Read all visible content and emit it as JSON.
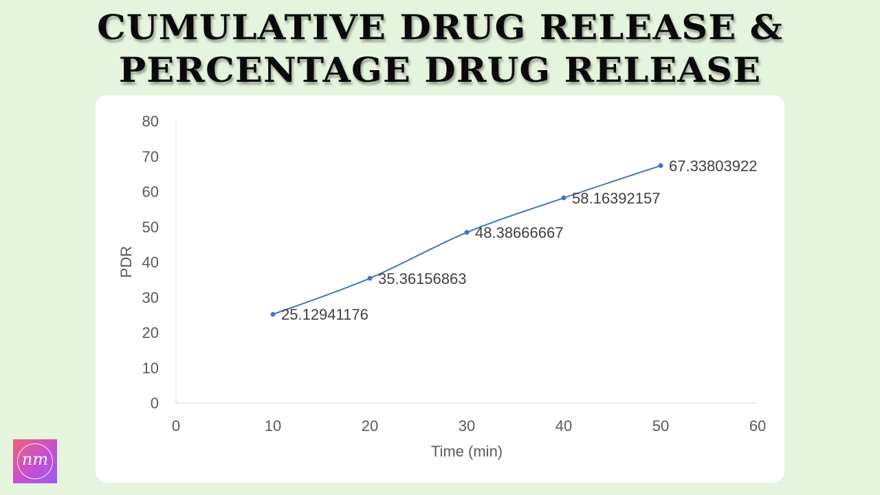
{
  "header": {
    "title_line_1": "CUMULATIVE DRUG RELEASE &",
    "title_line_2": "PERCENTAGE DRUG RELEASE"
  },
  "logo": {
    "text": "nm",
    "colors": [
      "#f0607a",
      "#c04fd8",
      "#9b5cf0"
    ]
  },
  "chart_data": {
    "type": "line",
    "title": "",
    "xlabel": "Time (min)",
    "ylabel": "PDR",
    "xlim": [
      0,
      60
    ],
    "ylim": [
      0,
      80
    ],
    "x_ticks": [
      0,
      10,
      20,
      30,
      40,
      50,
      60
    ],
    "y_ticks": [
      0,
      10,
      20,
      30,
      40,
      50,
      60,
      70,
      80
    ],
    "grid": false,
    "legend": "none",
    "smoothed": true,
    "line_color": "#4472c4",
    "series": [
      {
        "x": [
          10,
          20,
          30,
          40,
          50
        ],
        "values": [
          25.12941176,
          35.36156863,
          48.38666667,
          58.16392157,
          67.33803922
        ],
        "data_labels": [
          "25.12941176",
          "35.36156863",
          "48.38666667",
          "58.16392157",
          "67.33803922"
        ]
      }
    ]
  }
}
